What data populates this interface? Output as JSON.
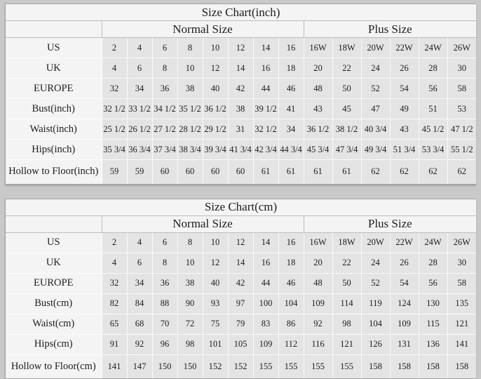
{
  "page": {
    "background_color": "#c9c9c9",
    "cell_color": "#e4e4e4",
    "header_cell_color": "#f4f4f4"
  },
  "tables": [
    {
      "title": "Size Chart(inch)",
      "group_headers": [
        "Normal Size",
        "Plus Size"
      ],
      "normal_size_columns": [
        "2",
        "4",
        "6",
        "8",
        "10",
        "12",
        "14",
        "16"
      ],
      "plus_size_columns": [
        "16W",
        "18W",
        "20W",
        "22W",
        "24W",
        "26W"
      ],
      "rows": [
        {
          "label": "US",
          "values": [
            "2",
            "4",
            "6",
            "8",
            "10",
            "12",
            "14",
            "16",
            "16W",
            "18W",
            "20W",
            "22W",
            "24W",
            "26W"
          ]
        },
        {
          "label": "UK",
          "values": [
            "4",
            "6",
            "8",
            "10",
            "12",
            "14",
            "16",
            "18",
            "20",
            "22",
            "24",
            "26",
            "28",
            "30"
          ]
        },
        {
          "label": "EUROPE",
          "values": [
            "32",
            "34",
            "36",
            "38",
            "40",
            "42",
            "44",
            "46",
            "48",
            "50",
            "52",
            "54",
            "56",
            "58"
          ]
        },
        {
          "label": "Bust(inch)",
          "values": [
            "32 1/2",
            "33 1/2",
            "34 1/2",
            "35 1/2",
            "36 1/2",
            "38",
            "39 1/2",
            "41",
            "43",
            "45",
            "47",
            "49",
            "51",
            "53"
          ]
        },
        {
          "label": "Waist(inch)",
          "values": [
            "25 1/2",
            "26 1/2",
            "27 1/2",
            "28 1/2",
            "29 1/2",
            "31",
            "32 1/2",
            "34",
            "36 1/2",
            "38 1/2",
            "40 3/4",
            "43",
            "45 1/2",
            "47 1/2"
          ]
        },
        {
          "label": "Hips(inch)",
          "values": [
            "35 3/4",
            "36 3/4",
            "37 3/4",
            "38 3/4",
            "39 3/4",
            "41 3/4",
            "42 3/4",
            "44 3/4",
            "45 3/4",
            "47 3/4",
            "49 3/4",
            "51 3/4",
            "53 3/4",
            "55 1/2"
          ]
        },
        {
          "label": "Hollow to Floor(inch)",
          "values": [
            "59",
            "59",
            "60",
            "60",
            "60",
            "60",
            "61",
            "61",
            "61",
            "61",
            "62",
            "62",
            "62",
            "62"
          ]
        }
      ]
    },
    {
      "title": "Size Chart(cm)",
      "group_headers": [
        "Normal Size",
        "Plus Size"
      ],
      "normal_size_columns": [
        "2",
        "4",
        "6",
        "8",
        "10",
        "12",
        "14",
        "16"
      ],
      "plus_size_columns": [
        "16W",
        "18W",
        "20W",
        "22W",
        "24W",
        "26W"
      ],
      "rows": [
        {
          "label": "US",
          "values": [
            "2",
            "4",
            "6",
            "8",
            "10",
            "12",
            "14",
            "16",
            "16W",
            "18W",
            "20W",
            "22W",
            "24W",
            "26W"
          ]
        },
        {
          "label": "UK",
          "values": [
            "4",
            "6",
            "8",
            "10",
            "12",
            "14",
            "16",
            "18",
            "20",
            "22",
            "24",
            "26",
            "28",
            "30"
          ]
        },
        {
          "label": "EUROPE",
          "values": [
            "32",
            "34",
            "36",
            "38",
            "40",
            "42",
            "44",
            "46",
            "48",
            "50",
            "52",
            "54",
            "56",
            "58"
          ]
        },
        {
          "label": "Bust(cm)",
          "values": [
            "82",
            "84",
            "88",
            "90",
            "93",
            "97",
            "100",
            "104",
            "109",
            "114",
            "119",
            "124",
            "130",
            "135"
          ]
        },
        {
          "label": "Waist(cm)",
          "values": [
            "65",
            "68",
            "70",
            "72",
            "75",
            "79",
            "83",
            "86",
            "92",
            "98",
            "104",
            "109",
            "115",
            "121"
          ]
        },
        {
          "label": "Hips(cm)",
          "values": [
            "91",
            "92",
            "96",
            "98",
            "101",
            "105",
            "109",
            "112",
            "116",
            "121",
            "126",
            "131",
            "136",
            "141"
          ]
        },
        {
          "label": "Hollow to Floor(cm)",
          "values": [
            "141",
            "147",
            "150",
            "150",
            "152",
            "152",
            "155",
            "155",
            "155",
            "155",
            "158",
            "158",
            "158",
            "158"
          ]
        }
      ]
    }
  ]
}
